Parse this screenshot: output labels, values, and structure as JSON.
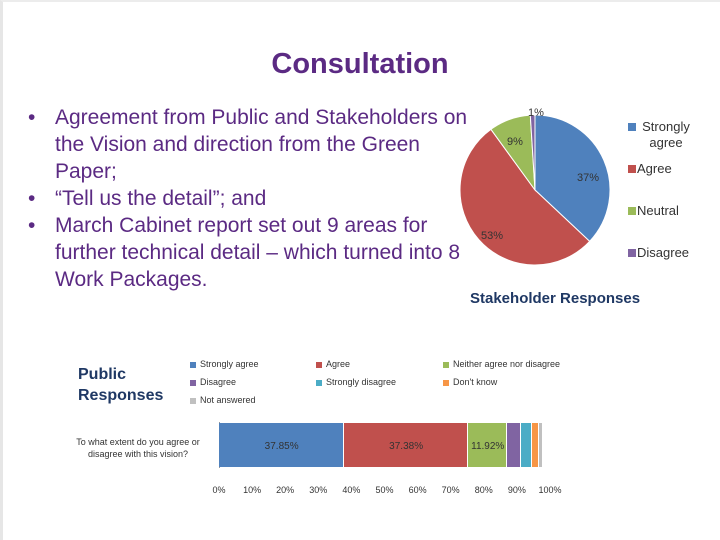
{
  "slide": {
    "title": "Consultation",
    "bullets": [
      "Agreement from Public and Stakeholders on the Vision and direction from the Green Paper;",
      "“Tell us the detail”; and",
      "March Cabinet report set out 9 areas for further technical detail – which turned into 8 Work Packages."
    ],
    "bullet_symbol": "•"
  },
  "chart_data": [
    {
      "type": "pie",
      "title": "Stakeholder Responses",
      "legend_position": "right",
      "slices": [
        {
          "label": "Strongly agree",
          "value": 37,
          "display": "37%",
          "color": "#4f81bd"
        },
        {
          "label": "Agree",
          "value": 53,
          "display": "53%",
          "color": "#c0504d"
        },
        {
          "label": "Neutral",
          "value": 9,
          "display": "9%",
          "color": "#9bbb59"
        },
        {
          "label": "Disagree",
          "value": 1,
          "display": "1%",
          "color": "#8064a2"
        }
      ]
    },
    {
      "type": "bar",
      "orientation": "horizontal",
      "stacked": true,
      "title": "Public Responses",
      "categories": [
        "To what extent do you agree or disagree with this vision?"
      ],
      "xlim": [
        0,
        100
      ],
      "x_ticks": [
        "0%",
        "10%",
        "20%",
        "30%",
        "40%",
        "50%",
        "60%",
        "70%",
        "80%",
        "90%",
        "100%"
      ],
      "legend_position": "top",
      "series": [
        {
          "name": "Strongly agree",
          "values": [
            37.85
          ],
          "display": "37.85%",
          "color": "#4f81bd"
        },
        {
          "name": "Agree",
          "values": [
            37.38
          ],
          "display": "37.38%",
          "color": "#c0504d"
        },
        {
          "name": "Neither agree nor disagree",
          "values": [
            11.92
          ],
          "display": "11.92%",
          "color": "#9bbb59"
        },
        {
          "name": "Disagree",
          "values": [
            4.0
          ],
          "display": "",
          "color": "#8064a2"
        },
        {
          "name": "Strongly disagree",
          "values": [
            3.3
          ],
          "display": "",
          "color": "#4bacc6"
        },
        {
          "name": "Don't know",
          "values": [
            2.3
          ],
          "display": "",
          "color": "#f79646"
        },
        {
          "name": "Not answered",
          "values": [
            1.25
          ],
          "display": "",
          "color": "#c0c0c0"
        }
      ]
    }
  ]
}
